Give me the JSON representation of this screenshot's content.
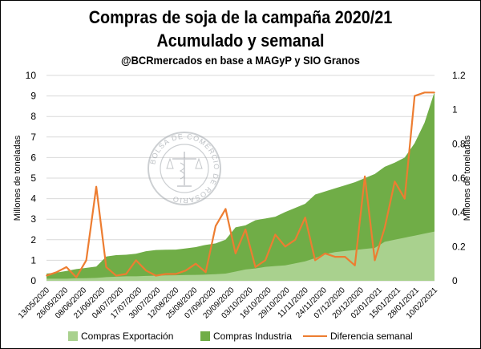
{
  "chart_title": "Compras de soja de la campaña 2020/21",
  "chart_subtitle": "Acumulado y semanal",
  "chart_source": "@BCRmercados en base a MAGyP y SIO Granos",
  "watermark_text": "BOLSA DE COMERCIO DE ROSARIO",
  "colors": {
    "exportacion": "#a9d18e",
    "industria": "#70ad47",
    "diferencia": "#ed7d31"
  },
  "chart_data": {
    "type": "area",
    "title": "Compras de soja de la campaña 2020/21",
    "subtitle": "Acumulado y semanal",
    "ylabel": "Millones de toneladas",
    "y2label": "Millones de toneladas",
    "ylim": [
      0,
      10
    ],
    "y2lim": [
      0,
      1.2
    ],
    "yticks": [
      "0",
      "1",
      "2",
      "3",
      "4",
      "5",
      "6",
      "7",
      "8",
      "9",
      "10"
    ],
    "y2ticks": [
      "0",
      "0.2",
      "0.4",
      "0.6",
      "0.8",
      "1",
      "1.2"
    ],
    "x_tick_labels": [
      "13/05/2020",
      "26/05/2020",
      "08/06/2020",
      "21/06/2020",
      "04/07/2020",
      "17/07/2020",
      "30/07/2020",
      "12/08/2020",
      "25/08/2020",
      "07/09/2020",
      "20/09/2020",
      "03/10/2020",
      "16/10/2020",
      "29/10/2020",
      "11/11/2020",
      "24/11/2020",
      "07/12/2020",
      "20/12/2020",
      "02/01/2021",
      "15/01/2021",
      "28/01/2021",
      "10/02/2021"
    ],
    "grid": true,
    "legend_position": "bottom",
    "series": [
      {
        "name": "Compras Exportación",
        "kind": "area",
        "axis": "left",
        "x": [
          "13/05/2020",
          "20/05/2020",
          "27/05/2020",
          "03/06/2020",
          "10/06/2020",
          "17/06/2020",
          "24/06/2020",
          "01/07/2020",
          "08/07/2020",
          "15/07/2020",
          "22/07/2020",
          "29/07/2020",
          "05/08/2020",
          "12/08/2020",
          "19/08/2020",
          "26/08/2020",
          "02/09/2020",
          "09/09/2020",
          "16/09/2020",
          "23/09/2020",
          "30/09/2020",
          "07/10/2020",
          "14/10/2020",
          "21/10/2020",
          "28/10/2020",
          "04/11/2020",
          "11/11/2020",
          "18/11/2020",
          "25/11/2020",
          "02/12/2020",
          "09/12/2020",
          "16/12/2020",
          "23/12/2020",
          "30/12/2020",
          "06/01/2021",
          "13/01/2021",
          "20/01/2021",
          "27/01/2021",
          "03/02/2021",
          "10/02/2021"
        ],
        "values": [
          0.1,
          0.1,
          0.1,
          0.12,
          0.13,
          0.14,
          0.18,
          0.2,
          0.22,
          0.22,
          0.24,
          0.25,
          0.26,
          0.27,
          0.28,
          0.29,
          0.3,
          0.32,
          0.35,
          0.45,
          0.55,
          0.6,
          0.68,
          0.72,
          0.75,
          0.85,
          0.95,
          1.1,
          1.3,
          1.4,
          1.45,
          1.5,
          1.55,
          1.6,
          1.9,
          2.0,
          2.1,
          2.2,
          2.3,
          2.4
        ]
      },
      {
        "name": "Compras Industria",
        "kind": "area",
        "axis": "left",
        "x": [
          "13/05/2020",
          "20/05/2020",
          "27/05/2020",
          "03/06/2020",
          "10/06/2020",
          "17/06/2020",
          "24/06/2020",
          "01/07/2020",
          "08/07/2020",
          "15/07/2020",
          "22/07/2020",
          "29/07/2020",
          "05/08/2020",
          "12/08/2020",
          "19/08/2020",
          "26/08/2020",
          "02/09/2020",
          "09/09/2020",
          "16/09/2020",
          "23/09/2020",
          "30/09/2020",
          "07/10/2020",
          "14/10/2020",
          "21/10/2020",
          "28/10/2020",
          "04/11/2020",
          "11/11/2020",
          "18/11/2020",
          "25/11/2020",
          "02/12/2020",
          "09/12/2020",
          "16/12/2020",
          "23/12/2020",
          "30/12/2020",
          "06/01/2021",
          "13/01/2021",
          "20/01/2021",
          "27/01/2021",
          "03/02/2021",
          "10/02/2021"
        ],
        "values": [
          0.25,
          0.3,
          0.38,
          0.45,
          0.5,
          0.55,
          1.0,
          1.05,
          1.05,
          1.1,
          1.2,
          1.25,
          1.25,
          1.25,
          1.3,
          1.35,
          1.45,
          1.5,
          1.65,
          2.15,
          2.15,
          2.35,
          2.35,
          2.4,
          2.6,
          2.7,
          2.8,
          3.1,
          3.05,
          3.1,
          3.2,
          3.3,
          3.45,
          3.6,
          3.65,
          3.75,
          3.9,
          4.5,
          5.4,
          6.8
        ]
      },
      {
        "name": "Diferencia semanal",
        "kind": "line",
        "axis": "right",
        "x": [
          "13/05/2020",
          "20/05/2020",
          "27/05/2020",
          "03/06/2020",
          "10/06/2020",
          "17/06/2020",
          "24/06/2020",
          "01/07/2020",
          "08/07/2020",
          "15/07/2020",
          "22/07/2020",
          "29/07/2020",
          "05/08/2020",
          "12/08/2020",
          "19/08/2020",
          "26/08/2020",
          "02/09/2020",
          "09/09/2020",
          "16/09/2020",
          "23/09/2020",
          "30/09/2020",
          "07/10/2020",
          "14/10/2020",
          "21/10/2020",
          "28/10/2020",
          "04/11/2020",
          "11/11/2020",
          "18/11/2020",
          "25/11/2020",
          "02/12/2020",
          "09/12/2020",
          "16/12/2020",
          "23/12/2020",
          "30/12/2020",
          "06/01/2021",
          "13/01/2021",
          "20/01/2021",
          "27/01/2021",
          "03/02/2021",
          "10/02/2021"
        ],
        "values": [
          0.03,
          0.05,
          0.08,
          0.02,
          0.12,
          0.55,
          0.08,
          0.03,
          0.04,
          0.12,
          0.06,
          0.03,
          0.04,
          0.04,
          0.06,
          0.1,
          0.05,
          0.32,
          0.42,
          0.16,
          0.3,
          0.08,
          0.12,
          0.27,
          0.2,
          0.24,
          0.37,
          0.12,
          0.16,
          0.14,
          0.14,
          0.09,
          0.61,
          0.12,
          0.31,
          0.58,
          0.48,
          1.08,
          1.1,
          1.1
        ]
      }
    ]
  }
}
